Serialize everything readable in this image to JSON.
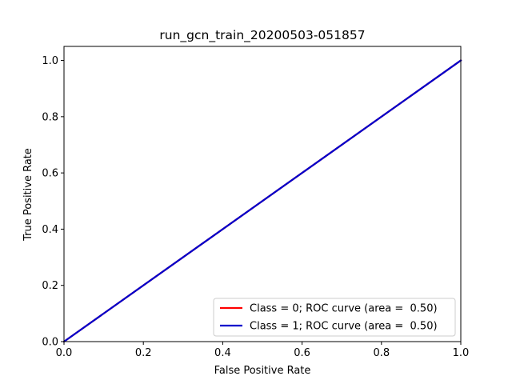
{
  "chart_data": {
    "type": "line",
    "title": "run_gcn_train_20200503-051857",
    "xlabel": "False Positive Rate",
    "ylabel": "True Positive Rate",
    "xlim": [
      0.0,
      1.0
    ],
    "ylim": [
      0.0,
      1.05
    ],
    "xticks": [
      0.0,
      0.2,
      0.4,
      0.6,
      0.8,
      1.0
    ],
    "yticks": [
      0.0,
      0.2,
      0.4,
      0.6,
      0.8,
      1.0
    ],
    "xtick_labels": [
      "0.0",
      "0.2",
      "0.4",
      "0.6",
      "0.8",
      "1.0"
    ],
    "ytick_labels": [
      "0.0",
      "0.2",
      "0.4",
      "0.6",
      "0.8",
      "1.0"
    ],
    "grid": false,
    "legend_position": "lower-right",
    "series": [
      {
        "name": "Class = 0; ROC curve (area =  0.50)",
        "color": "#ff0000",
        "x": [
          0.0,
          1.0
        ],
        "y": [
          0.0,
          1.0
        ]
      },
      {
        "name": "Class = 1; ROC curve (area =  0.50)",
        "color": "#0000cc",
        "x": [
          0.0,
          1.0
        ],
        "y": [
          0.0,
          1.0
        ]
      }
    ]
  }
}
